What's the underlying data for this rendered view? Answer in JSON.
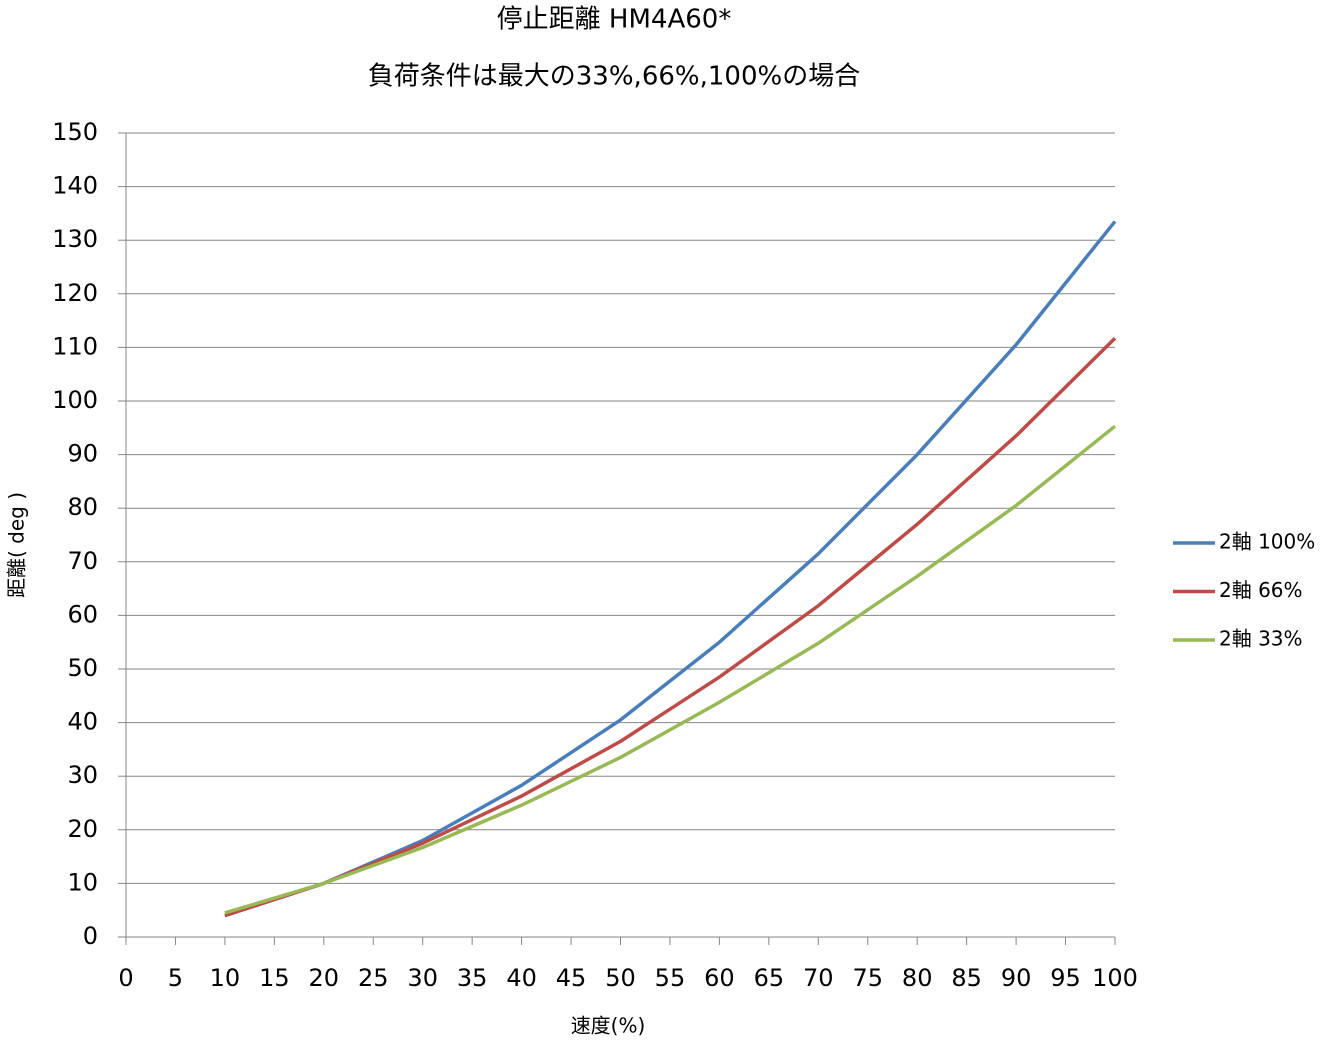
{
  "chart_data": {
    "type": "line",
    "title": "停止距離 HM4A60*",
    "subtitle": "負荷条件は最大の33%,66%,100%の場合",
    "x_label": "速度(%)",
    "y_label": "距離( deg )",
    "x": [
      10,
      20,
      30,
      40,
      50,
      60,
      70,
      80,
      90,
      100
    ],
    "series": [
      {
        "name": "2軸 100%",
        "color": "#4a7ebb",
        "values": [
          4,
          10,
          18,
          28.3,
          40.5,
          55,
          71.5,
          90,
          110.5,
          133.5
        ]
      },
      {
        "name": "2軸 66%",
        "color": "#be4b48",
        "values": [
          4,
          10,
          17.5,
          26.3,
          36.5,
          48.5,
          61.8,
          77,
          93.5,
          111.7
        ]
      },
      {
        "name": "2軸 33%",
        "color": "#98b954",
        "values": [
          4.5,
          10,
          16.7,
          24.6,
          33.5,
          43.8,
          54.8,
          67.3,
          80.5,
          95.3
        ]
      }
    ],
    "xlim": [
      0,
      100
    ],
    "xticks": [
      0,
      5,
      10,
      15,
      20,
      25,
      30,
      35,
      40,
      45,
      50,
      55,
      60,
      65,
      70,
      75,
      80,
      85,
      90,
      95,
      100
    ],
    "ylim": [
      0,
      150
    ],
    "yticks": [
      0,
      10,
      20,
      30,
      40,
      50,
      60,
      70,
      80,
      90,
      100,
      110,
      120,
      130,
      140,
      150
    ],
    "grid": true,
    "legend": "right"
  }
}
